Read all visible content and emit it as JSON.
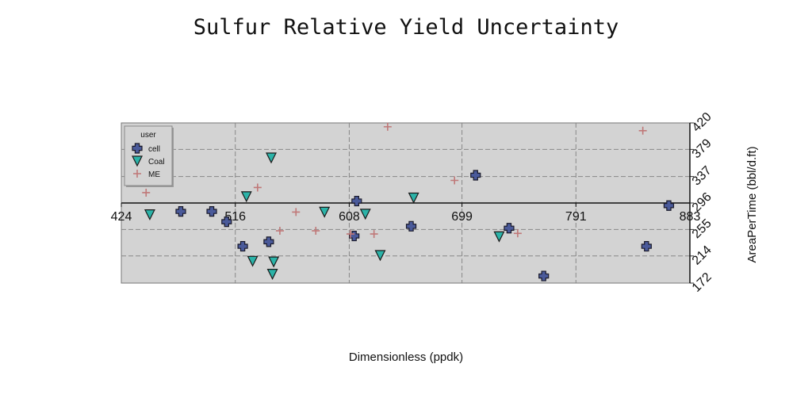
{
  "chart_data": {
    "type": "scatter",
    "title": "Sulfur Relative Yield Uncertainty",
    "xlabel": "Dimensionless (ppdk)",
    "ylabel": "AreaPerTime (bbl/d.ft)",
    "xlim": [
      424,
      883
    ],
    "ylim": [
      172,
      420
    ],
    "x_ticks": [
      "424",
      "516",
      "608",
      "699",
      "791",
      "883"
    ],
    "y_ticks": [
      "172",
      "214",
      "255",
      "296",
      "337",
      "379",
      "420"
    ],
    "grid": true,
    "legend": {
      "title": "user",
      "position": "top-left"
    },
    "series": [
      {
        "name": "cell",
        "marker": "plus-filled",
        "color": "#4a5a9a",
        "x": [
          472,
          497,
          509,
          522,
          543,
          612,
          614,
          658,
          710,
          737,
          765,
          848,
          866
        ],
        "y": [
          283,
          283,
          267,
          229,
          236,
          245,
          299,
          260,
          339,
          257,
          183,
          229,
          292
        ]
      },
      {
        "name": "Coal",
        "marker": "triangle-down",
        "color": "#2bb3a8",
        "x": [
          447,
          453,
          525,
          530,
          545,
          546,
          547,
          588,
          621,
          633,
          660,
          729
        ],
        "y": [
          278,
          330,
          306,
          206,
          366,
          186,
          205,
          282,
          279,
          215,
          304,
          244
        ]
      },
      {
        "name": "ME",
        "marker": "plus",
        "color": "#c07878",
        "x": [
          444,
          534,
          552,
          565,
          581,
          609,
          628,
          639,
          693,
          744,
          845
        ],
        "y": [
          312,
          320,
          253,
          282,
          253,
          248,
          248,
          414,
          331,
          249,
          408
        ]
      }
    ]
  }
}
